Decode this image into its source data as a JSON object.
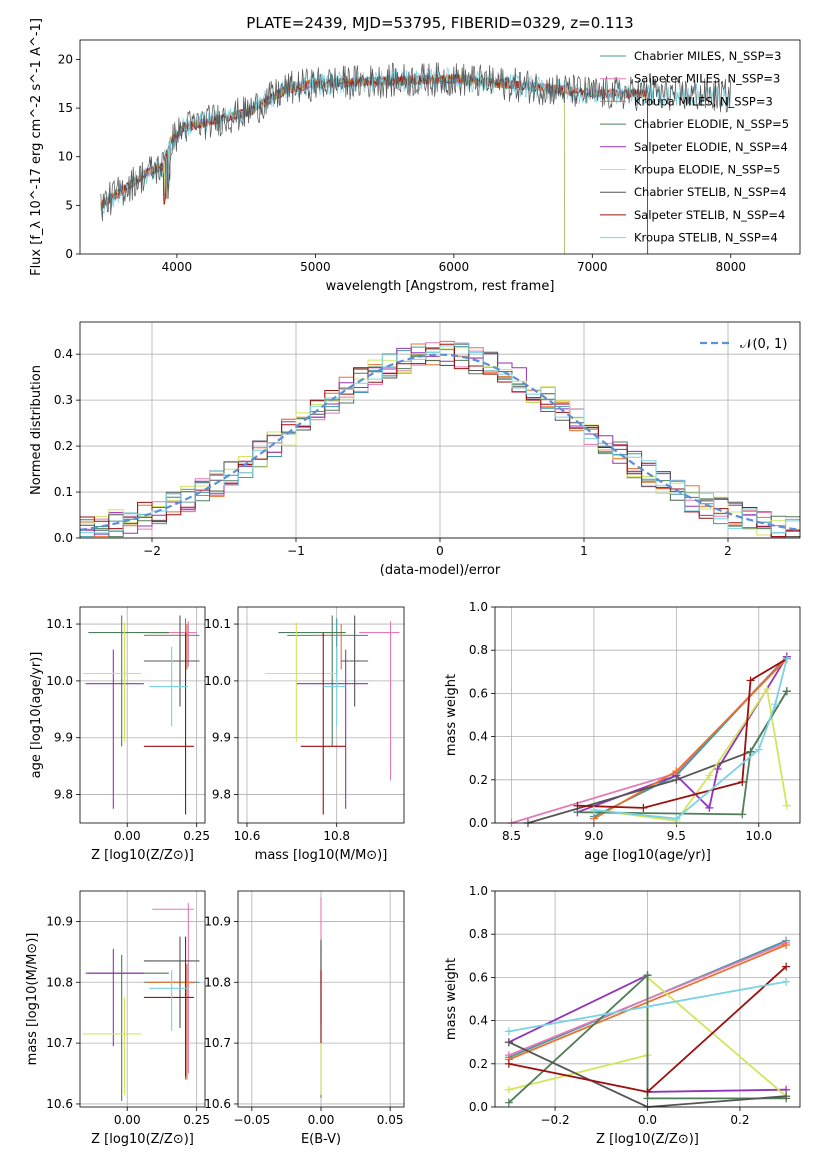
{
  "figure_title": "PLATE=2439, MJD=53795, FIBERID=0329, z=0.113",
  "colors": {
    "chabrier_miles": "#3f9aa8",
    "salpeter_miles": "#e27bb6",
    "kroupa_miles": "#e8722e",
    "chabrier_elodie": "#4f7d5a",
    "salpeter_elodie": "#9333b8",
    "kroupa_elodie": "#d3e45d",
    "chabrier_stelib": "#555555",
    "salpeter_stelib": "#9b1111",
    "kroupa_stelib": "#79d3e0",
    "gaussian": "#5b8fd6",
    "grid": "#b0b0b0"
  },
  "chart_data": [
    {
      "id": "spectrum",
      "type": "line",
      "title": "PLATE=2439, MJD=53795, FIBERID=0329, z=0.113",
      "xlabel": "wavelength [Angstrom, rest frame]",
      "ylabel": "Flux [f_λ 10^-17 erg cm^-2 s^-1 A^-1]",
      "xlim": [
        3300,
        8500
      ],
      "ylim": [
        0,
        22
      ],
      "xticks": [
        "4000",
        "5000",
        "6000",
        "7000",
        "8000"
      ],
      "yticks": [
        "0",
        "5",
        "10",
        "15",
        "20"
      ],
      "grid": false,
      "legend": "top-right",
      "data_range": [
        3450,
        8000
      ],
      "continuum_knots": [
        [
          3450,
          5.0
        ],
        [
          3600,
          6.5
        ],
        [
          3800,
          8.5
        ],
        [
          3900,
          9.0
        ],
        [
          3950,
          11.5
        ],
        [
          4050,
          13.0
        ],
        [
          4200,
          13.5
        ],
        [
          4500,
          14.5
        ],
        [
          4800,
          17.0
        ],
        [
          5000,
          17.5
        ],
        [
          5500,
          17.8
        ],
        [
          6000,
          18.0
        ],
        [
          6500,
          17.3
        ],
        [
          7000,
          16.5
        ],
        [
          7500,
          16.5
        ],
        [
          8000,
          16.2
        ]
      ],
      "series": [
        {
          "name": "Chabrier MILES, N_SSP=3",
          "color_key": "chabrier_miles",
          "end": 7400
        },
        {
          "name": "Salpeter MILES, N_SSP=3",
          "color_key": "salpeter_miles",
          "end": 7400
        },
        {
          "name": "Kroupa MILES, N_SSP=3",
          "color_key": "kroupa_miles",
          "end": 7400
        },
        {
          "name": "Chabrier ELODIE, N_SSP=5",
          "color_key": "chabrier_elodie",
          "end": 6800
        },
        {
          "name": "Salpeter ELODIE, N_SSP=4",
          "color_key": "salpeter_elodie",
          "end": 6800
        },
        {
          "name": "Kroupa ELODIE, N_SSP=5",
          "color_key": "kroupa_elodie",
          "end": 6800
        },
        {
          "name": "Chabrier STELIB, N_SSP=4",
          "color_key": "chabrier_stelib",
          "end": 8000
        },
        {
          "name": "Salpeter STELIB, N_SSP=4",
          "color_key": "salpeter_stelib",
          "end": 7400
        },
        {
          "name": "Kroupa STELIB, N_SSP=4",
          "color_key": "kroupa_stelib",
          "end": 8000
        }
      ]
    },
    {
      "id": "residuals",
      "type": "line",
      "xlabel": "(data-model)/error",
      "ylabel": "Normed distribution",
      "xlim": [
        -2.5,
        2.5
      ],
      "ylim": [
        0,
        0.47
      ],
      "xticks": [
        "−2",
        "−1",
        "0",
        "1",
        "2"
      ],
      "yticks": [
        "0.0",
        "0.1",
        "0.2",
        "0.3",
        "0.4"
      ],
      "grid": true,
      "legend": "top-right",
      "legend_label": "𝒩(0, 1)",
      "bin_width": 0.1
    },
    {
      "id": "age_vs_Z",
      "type": "scatter",
      "xlabel": "Z [log10(Z/Z⊙)]",
      "ylabel": "age [log10(age/yr)]",
      "xlim": [
        -0.17,
        0.28
      ],
      "ylim": [
        9.75,
        10.13
      ],
      "xticks": [
        "0.00",
        "0.25"
      ],
      "yticks": [
        "9.8",
        "9.9",
        "10.0",
        "10.1"
      ],
      "grid": true,
      "points": [
        {
          "k": "chabrier_miles",
          "x": 0.21,
          "xerr": [
            0.15,
            0.05
          ],
          "y": 10.08,
          "yerr": [
            0.07,
            0.03
          ]
        },
        {
          "k": "salpeter_miles",
          "x": 0.22,
          "xerr": [
            0.14,
            0.03
          ],
          "y": 10.085,
          "yerr": [
            0.06,
            0.02
          ]
        },
        {
          "k": "kroupa_miles",
          "x": 0.215,
          "xerr": [
            0.15,
            0.03
          ],
          "y": 10.08,
          "yerr": [
            0.06,
            0.02
          ]
        },
        {
          "k": "chabrier_elodie",
          "x": -0.02,
          "xerr": [
            0.12,
            0.17
          ],
          "y": 10.085,
          "yerr": [
            0.2,
            0.03
          ]
        },
        {
          "k": "salpeter_elodie",
          "x": -0.05,
          "xerr": [
            0.1,
            0.11
          ],
          "y": 9.995,
          "yerr": [
            0.22,
            0.06
          ]
        },
        {
          "k": "kroupa_elodie",
          "x": -0.01,
          "xerr": [
            0.15,
            0.06
          ],
          "y": 10.013,
          "yerr": [
            0.12,
            0.09
          ]
        },
        {
          "k": "chabrier_stelib",
          "x": 0.19,
          "xerr": [
            0.13,
            0.07
          ],
          "y": 10.035,
          "yerr": [
            0.08,
            0.08
          ]
        },
        {
          "k": "salpeter_stelib",
          "x": 0.21,
          "xerr": [
            0.15,
            0.03
          ],
          "y": 9.885,
          "yerr": [
            0.12,
            0.2
          ]
        },
        {
          "k": "kroupa_stelib",
          "x": 0.16,
          "xerr": [
            0.08,
            0.06
          ],
          "y": 9.99,
          "yerr": [
            0.07,
            0.07
          ]
        }
      ]
    },
    {
      "id": "age_vs_mass",
      "type": "scatter",
      "xlabel": "mass [log10(M/M⊙)]",
      "ylabel": "",
      "xlim": [
        10.58,
        10.95
      ],
      "ylim": [
        9.75,
        10.13
      ],
      "xticks": [
        "10.6",
        "10.8"
      ],
      "yticks": [
        "9.8",
        "9.9",
        "10.0",
        "10.1"
      ],
      "grid": true,
      "points": [
        {
          "k": "chabrier_miles",
          "x": 10.8,
          "xerr": [
            0.11,
            0.07
          ],
          "y": 10.08,
          "yerr": [
            0.07,
            0.03
          ]
        },
        {
          "k": "salpeter_miles",
          "x": 10.92,
          "xerr": [
            0.07,
            0.02
          ],
          "y": 10.085,
          "yerr": [
            0.26,
            0.02
          ]
        },
        {
          "k": "kroupa_miles",
          "x": 10.81,
          "xerr": [
            0.06,
            0.02
          ],
          "y": 10.08,
          "yerr": [
            0.06,
            0.02
          ]
        },
        {
          "k": "chabrier_elodie",
          "x": 10.79,
          "xerr": [
            0.12,
            0.03
          ],
          "y": 10.085,
          "yerr": [
            0.2,
            0.03
          ]
        },
        {
          "k": "salpeter_elodie",
          "x": 10.82,
          "xerr": [
            0.11,
            0.05
          ],
          "y": 9.995,
          "yerr": [
            0.22,
            0.06
          ]
        },
        {
          "k": "kroupa_elodie",
          "x": 10.71,
          "xerr": [
            0.07,
            0.09
          ],
          "y": 10.013,
          "yerr": [
            0.12,
            0.09
          ]
        },
        {
          "k": "chabrier_stelib",
          "x": 10.84,
          "xerr": [
            0.03,
            0.03
          ],
          "y": 10.035,
          "yerr": [
            0.08,
            0.08
          ]
        },
        {
          "k": "salpeter_stelib",
          "x": 10.77,
          "xerr": [
            0.05,
            0.05
          ],
          "y": 9.885,
          "yerr": [
            0.12,
            0.2
          ]
        },
        {
          "k": "kroupa_stelib",
          "x": 10.8,
          "xerr": [
            0.03,
            0.02
          ],
          "y": 9.99,
          "yerr": [
            0.07,
            0.07
          ]
        }
      ]
    },
    {
      "id": "weight_vs_age",
      "type": "line",
      "xlabel": "age [log10(age/yr)]",
      "ylabel": "mass weight",
      "xlim": [
        8.4,
        10.25
      ],
      "ylim": [
        0,
        1
      ],
      "xticks": [
        "8.5",
        "9.0",
        "9.5",
        "10.0"
      ],
      "yticks": [
        "0.0",
        "0.2",
        "0.4",
        "0.6",
        "0.8",
        "1.0"
      ],
      "grid": true,
      "series": [
        {
          "k": "salpeter_miles",
          "x": [
            8.5,
            9.5,
            10.17
          ],
          "y": [
            0.0,
            0.23,
            0.77
          ]
        },
        {
          "k": "chabrier_miles",
          "x": [
            9.0,
            9.5,
            10.17
          ],
          "y": [
            0.03,
            0.22,
            0.77
          ]
        },
        {
          "k": "salpeter_elodie",
          "x": [
            8.9,
            9.5,
            9.7,
            9.75,
            10.17
          ],
          "y": [
            0.05,
            0.22,
            0.07,
            0.25,
            0.77
          ]
        },
        {
          "k": "kroupa_miles",
          "x": [
            9.0,
            9.5,
            10.17
          ],
          "y": [
            0.02,
            0.24,
            0.76
          ]
        },
        {
          "k": "chabrier_stelib",
          "x": [
            8.6,
            9.5,
            9.95,
            10.17
          ],
          "y": [
            0.0,
            0.2,
            0.33,
            0.61
          ]
        },
        {
          "k": "kroupa_elodie",
          "x": [
            9.0,
            9.5,
            9.7,
            10.05,
            10.17
          ],
          "y": [
            0.06,
            0.01,
            0.22,
            0.62,
            0.08
          ]
        },
        {
          "k": "chabrier_elodie",
          "x": [
            8.9,
            9.9,
            9.95,
            10.17
          ],
          "y": [
            0.05,
            0.04,
            0.33,
            0.61
          ]
        },
        {
          "k": "salpeter_stelib",
          "x": [
            8.9,
            9.3,
            9.9,
            9.95,
            10.17
          ],
          "y": [
            0.08,
            0.07,
            0.19,
            0.66,
            0.76
          ]
        },
        {
          "k": "kroupa_stelib",
          "x": [
            9.0,
            9.5,
            10.0,
            10.1,
            10.17
          ],
          "y": [
            0.06,
            0.02,
            0.34,
            0.55,
            0.76
          ]
        }
      ]
    },
    {
      "id": "mass_vs_Z",
      "type": "scatter",
      "xlabel": "Z [log10(Z/Z⊙)]",
      "ylabel": "mass [log10(M/M⊙)]",
      "xlim": [
        -0.17,
        0.28
      ],
      "ylim": [
        10.595,
        10.95
      ],
      "xticks": [
        "0.00",
        "0.25"
      ],
      "yticks": [
        "10.6",
        "10.7",
        "10.8",
        "10.9"
      ],
      "grid": true,
      "points": [
        {
          "k": "chabrier_miles",
          "x": 0.21,
          "xerr": [
            0.15,
            0.05
          ],
          "y": 10.8,
          "yerr": [
            0.16,
            0.03
          ]
        },
        {
          "k": "salpeter_miles",
          "x": 0.22,
          "xerr": [
            0.13,
            0.02
          ],
          "y": 10.92,
          "yerr": [
            0.27,
            0.01
          ]
        },
        {
          "k": "kroupa_miles",
          "x": 0.215,
          "xerr": [
            0.15,
            0.03
          ],
          "y": 10.8,
          "yerr": [
            0.16,
            0.03
          ]
        },
        {
          "k": "chabrier_elodie",
          "x": -0.02,
          "xerr": [
            0.12,
            0.17
          ],
          "y": 10.815,
          "yerr": [
            0.21,
            0.03
          ]
        },
        {
          "k": "salpeter_elodie",
          "x": -0.05,
          "xerr": [
            0.1,
            0.11
          ],
          "y": 10.815,
          "yerr": [
            0.12,
            0.04
          ]
        },
        {
          "k": "kroupa_elodie",
          "x": -0.01,
          "xerr": [
            0.15,
            0.06
          ],
          "y": 10.715,
          "yerr": [
            0.1,
            0.06
          ]
        },
        {
          "k": "chabrier_stelib",
          "x": 0.19,
          "xerr": [
            0.13,
            0.07
          ],
          "y": 10.835,
          "yerr": [
            0.11,
            0.04
          ]
        },
        {
          "k": "salpeter_stelib",
          "x": 0.21,
          "xerr": [
            0.15,
            0.03
          ],
          "y": 10.775,
          "yerr": [
            0.13,
            0.1
          ]
        },
        {
          "k": "kroupa_stelib",
          "x": 0.16,
          "xerr": [
            0.08,
            0.06
          ],
          "y": 10.79,
          "yerr": [
            0.07,
            0.03
          ]
        }
      ]
    },
    {
      "id": "mass_vs_EBV",
      "type": "scatter",
      "xlabel": "E(B-V)",
      "ylabel": "",
      "xlim": [
        -0.06,
        0.06
      ],
      "ylim": [
        10.595,
        10.95
      ],
      "xticks": [
        "−0.05",
        "0.00",
        "0.05"
      ],
      "yticks": [
        "10.6",
        "10.7",
        "10.8",
        "10.9"
      ],
      "grid": true,
      "points": [
        {
          "k": "salpeter_miles",
          "x": 0.0,
          "xerr": [
            0,
            0
          ],
          "y": 10.92,
          "yerr": [
            0.12,
            0.02
          ]
        },
        {
          "k": "chabrier_elodie",
          "x": 0.0,
          "xerr": [
            0,
            0
          ],
          "y": 10.81,
          "yerr": [
            0.2,
            0.05
          ]
        },
        {
          "k": "kroupa_elodie",
          "x": 0.0,
          "xerr": [
            0,
            0
          ],
          "y": 10.715,
          "yerr": [
            0.1,
            0.06
          ]
        },
        {
          "k": "chabrier_stelib",
          "x": 0.0,
          "xerr": [
            0,
            0
          ],
          "y": 10.83,
          "yerr": [
            0.1,
            0.04
          ]
        },
        {
          "k": "salpeter_stelib",
          "x": 0.0,
          "xerr": [
            0,
            0
          ],
          "y": 10.78,
          "yerr": [
            0.08,
            0.04
          ]
        }
      ]
    },
    {
      "id": "weight_vs_Z",
      "type": "line",
      "xlabel": "Z [log10(Z/Z⊙)]",
      "ylabel": "mass weight",
      "xlim": [
        -0.33,
        0.33
      ],
      "ylim": [
        0,
        1
      ],
      "xticks": [
        "−0.2",
        "0.0",
        "0.2"
      ],
      "yticks": [
        "0.0",
        "0.2",
        "0.4",
        "0.6",
        "0.8",
        "1.0"
      ],
      "grid": true,
      "series": [
        {
          "k": "salpeter_elodie",
          "x": [
            -0.3,
            0.0,
            0.0,
            0.3
          ],
          "y": [
            0.3,
            0.61,
            0.07,
            0.08
          ]
        },
        {
          "k": "chabrier_miles",
          "x": [
            -0.3,
            0.3
          ],
          "y": [
            0.23,
            0.77
          ]
        },
        {
          "k": "salpeter_miles",
          "x": [
            -0.3,
            0.3
          ],
          "y": [
            0.24,
            0.76
          ]
        },
        {
          "k": "kroupa_miles",
          "x": [
            -0.3,
            0.3
          ],
          "y": [
            0.22,
            0.75
          ]
        },
        {
          "k": "kroupa_elodie",
          "x": [
            -0.3,
            0.0,
            0.0,
            0.3
          ],
          "y": [
            0.08,
            0.24,
            0.6,
            0.05
          ]
        },
        {
          "k": "chabrier_elodie",
          "x": [
            -0.3,
            0.0,
            0.0,
            0.3
          ],
          "y": [
            0.02,
            0.61,
            0.04,
            0.04
          ]
        },
        {
          "k": "chabrier_stelib",
          "x": [
            -0.3,
            0.0,
            0.3
          ],
          "y": [
            0.3,
            0.0,
            0.05
          ]
        },
        {
          "k": "salpeter_stelib",
          "x": [
            -0.3,
            0.0,
            0.3
          ],
          "y": [
            0.2,
            0.07,
            0.65
          ]
        },
        {
          "k": "kroupa_stelib",
          "x": [
            -0.3,
            0.3
          ],
          "y": [
            0.35,
            0.58
          ]
        }
      ]
    }
  ]
}
